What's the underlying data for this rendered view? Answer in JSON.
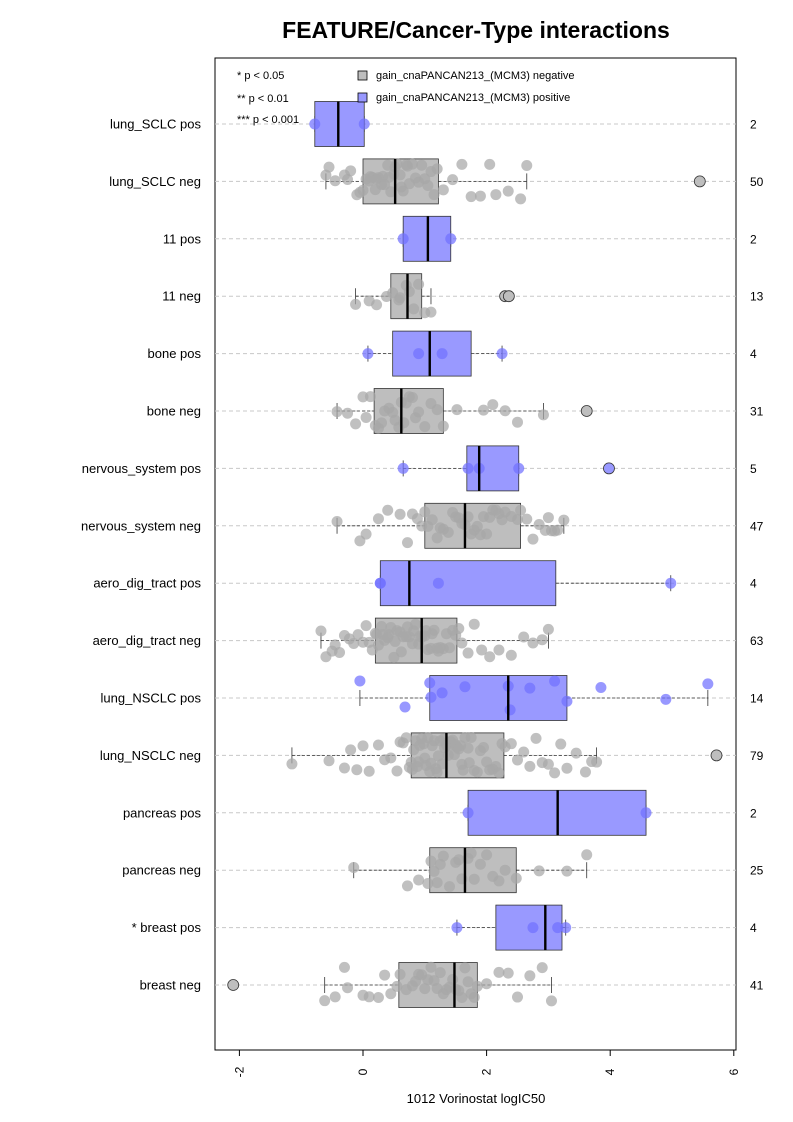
{
  "chart_data": {
    "type": "box",
    "orientation": "horizontal",
    "title": "FEATURE/Cancer-Type interactions",
    "xlabel": "1012 Vorinostat logIC50",
    "xlim": [
      -2.4,
      6
    ],
    "x_ticks": [
      -2,
      0,
      2,
      4,
      6
    ],
    "x_tick_labels": [
      "-2",
      "0",
      "2",
      "4",
      "6"
    ],
    "grid": "horizontal dashed",
    "legend": {
      "placement": "top-left",
      "significance": [
        "* p < 0.05",
        "** p < 0.01",
        "*** p < 0.001"
      ],
      "groups": [
        {
          "label": "gain_cnaPANCAN213_(MCM3) negative",
          "color": "#bebebe"
        },
        {
          "label": "gain_cnaPANCAN213_(MCM3) positive",
          "color": "#9999ff"
        }
      ]
    },
    "colors": {
      "negative_box": "#bebebe",
      "positive_box": "#9999ff",
      "negative_point": "#a8a8a8",
      "positive_point": "#7070ff"
    },
    "rows": [
      {
        "label": "lung_SCLC pos",
        "group": "positive",
        "n": "2",
        "q1": -0.78,
        "median": -0.4,
        "q3": 0.02,
        "wlo": -0.78,
        "whi": 0.02,
        "outliers": [],
        "points": [
          -0.78,
          0.02
        ]
      },
      {
        "label": "lung_SCLC neg",
        "group": "negative",
        "n": "50",
        "q1": 0.0,
        "median": 0.52,
        "q3": 1.22,
        "wlo": -0.6,
        "whi": 2.65,
        "outliers": [
          5.45
        ],
        "points": [
          -0.6,
          -0.55,
          -0.45,
          -0.3,
          -0.25,
          -0.2,
          -0.1,
          -0.05,
          0.0,
          0.05,
          0.1,
          0.12,
          0.15,
          0.2,
          0.22,
          0.25,
          0.3,
          0.32,
          0.35,
          0.4,
          0.42,
          0.45,
          0.5,
          0.52,
          0.55,
          0.6,
          0.62,
          0.65,
          0.7,
          0.72,
          0.75,
          0.8,
          0.85,
          0.9,
          0.95,
          1.0,
          1.05,
          1.1,
          1.15,
          1.2,
          1.3,
          1.45,
          1.6,
          1.75,
          1.9,
          2.05,
          2.15,
          2.35,
          2.55,
          2.65
        ]
      },
      {
        "label": "11 pos",
        "group": "positive",
        "n": "2",
        "q1": 0.65,
        "median": 1.05,
        "q3": 1.42,
        "wlo": 0.65,
        "whi": 1.42,
        "outliers": [],
        "points": [
          0.65,
          1.42
        ]
      },
      {
        "label": "11 neg",
        "group": "negative",
        "n": "13",
        "q1": 0.45,
        "median": 0.72,
        "q3": 0.95,
        "wlo": -0.12,
        "whi": 1.1,
        "outliers": [
          2.3,
          2.36
        ],
        "points": [
          -0.12,
          0.1,
          0.22,
          0.38,
          0.48,
          0.58,
          0.7,
          0.75,
          0.82,
          0.9,
          1.0,
          1.1,
          0.6
        ]
      },
      {
        "label": "bone pos",
        "group": "positive",
        "n": "4",
        "q1": 0.48,
        "median": 1.08,
        "q3": 1.75,
        "wlo": 0.08,
        "whi": 2.25,
        "outliers": [],
        "points": [
          0.08,
          0.9,
          1.28,
          2.25
        ]
      },
      {
        "label": "bone neg",
        "group": "negative",
        "n": "31",
        "q1": 0.18,
        "median": 0.62,
        "q3": 1.3,
        "wlo": -0.42,
        "whi": 2.92,
        "outliers": [
          3.62
        ],
        "points": [
          -0.42,
          -0.25,
          -0.12,
          0.0,
          0.05,
          0.12,
          0.2,
          0.25,
          0.3,
          0.35,
          0.42,
          0.48,
          0.52,
          0.58,
          0.62,
          0.66,
          0.7,
          0.75,
          0.8,
          0.85,
          0.9,
          1.0,
          1.1,
          1.2,
          1.3,
          1.52,
          1.95,
          2.1,
          2.3,
          2.5,
          2.92
        ]
      },
      {
        "label": "nervous_system pos",
        "group": "positive",
        "n": "5",
        "q1": 1.68,
        "median": 1.88,
        "q3": 2.52,
        "wlo": 0.65,
        "whi": 2.52,
        "outliers": [
          3.98
        ],
        "points": [
          0.65,
          1.7,
          1.88,
          2.52
        ]
      },
      {
        "label": "nervous_system neg",
        "group": "negative",
        "n": "47",
        "q1": 1.0,
        "median": 1.65,
        "q3": 2.55,
        "wlo": -0.42,
        "whi": 3.25,
        "outliers": [],
        "points": [
          -0.42,
          -0.05,
          0.05,
          0.25,
          0.4,
          0.6,
          0.72,
          0.8,
          0.88,
          0.95,
          1.0,
          1.05,
          1.12,
          1.2,
          1.25,
          1.3,
          1.38,
          1.45,
          1.5,
          1.55,
          1.6,
          1.65,
          1.7,
          1.75,
          1.8,
          1.85,
          1.9,
          1.95,
          2.0,
          2.05,
          2.1,
          2.15,
          2.2,
          2.3,
          2.4,
          2.5,
          2.55,
          2.65,
          2.75,
          2.85,
          2.95,
          3.0,
          3.05,
          3.1,
          3.15,
          3.25,
          2.25
        ]
      },
      {
        "label": "aero_dig_tract pos",
        "group": "positive",
        "n": "4",
        "q1": 0.28,
        "median": 0.75,
        "q3": 3.12,
        "wlo": 0.28,
        "whi": 4.98,
        "outliers": [],
        "points": [
          0.28,
          0.28,
          1.22,
          4.98
        ]
      },
      {
        "label": "aero_dig_tract neg",
        "group": "negative",
        "n": "63",
        "q1": 0.2,
        "median": 0.95,
        "q3": 1.52,
        "wlo": -0.68,
        "whi": 3.0,
        "outliers": [],
        "points": [
          -0.68,
          -0.6,
          -0.5,
          -0.45,
          -0.38,
          -0.3,
          -0.22,
          -0.15,
          -0.08,
          0.0,
          0.05,
          0.1,
          0.15,
          0.2,
          0.22,
          0.25,
          0.3,
          0.32,
          0.35,
          0.4,
          0.42,
          0.45,
          0.5,
          0.52,
          0.55,
          0.6,
          0.62,
          0.65,
          0.7,
          0.72,
          0.75,
          0.8,
          0.82,
          0.85,
          0.9,
          0.92,
          0.95,
          1.0,
          1.02,
          1.05,
          1.1,
          1.12,
          1.15,
          1.2,
          1.22,
          1.25,
          1.3,
          1.35,
          1.4,
          1.45,
          1.5,
          1.55,
          1.6,
          1.7,
          1.8,
          1.92,
          2.05,
          2.2,
          2.4,
          2.6,
          2.75,
          2.9,
          3.0
        ]
      },
      {
        "label": "lung_NSCLC pos",
        "group": "positive",
        "n": "14",
        "q1": 1.08,
        "median": 2.35,
        "q3": 3.3,
        "wlo": -0.05,
        "whi": 5.58,
        "outliers": [],
        "points": [
          -0.05,
          0.68,
          1.08,
          1.1,
          1.28,
          1.65,
          2.35,
          2.38,
          2.7,
          3.1,
          3.3,
          3.85,
          4.9,
          5.58
        ]
      },
      {
        "label": "lung_NSCLC neg",
        "group": "negative",
        "n": "79",
        "q1": 0.78,
        "median": 1.35,
        "q3": 2.28,
        "wlo": -1.15,
        "whi": 3.78,
        "outliers": [
          5.72
        ],
        "points": [
          -1.15,
          -0.55,
          -0.3,
          -0.2,
          -0.1,
          0.0,
          0.1,
          0.25,
          0.35,
          0.45,
          0.55,
          0.6,
          0.65,
          0.7,
          0.75,
          0.78,
          0.8,
          0.82,
          0.85,
          0.88,
          0.9,
          0.92,
          0.95,
          0.98,
          1.0,
          1.02,
          1.05,
          1.08,
          1.1,
          1.12,
          1.15,
          1.18,
          1.2,
          1.22,
          1.25,
          1.28,
          1.3,
          1.32,
          1.35,
          1.38,
          1.4,
          1.42,
          1.45,
          1.48,
          1.5,
          1.52,
          1.55,
          1.58,
          1.6,
          1.62,
          1.65,
          1.7,
          1.72,
          1.75,
          1.8,
          1.85,
          1.9,
          1.95,
          2.0,
          2.05,
          2.1,
          2.15,
          2.2,
          2.25,
          2.3,
          2.4,
          2.5,
          2.6,
          2.7,
          2.8,
          2.9,
          3.0,
          3.1,
          3.2,
          3.3,
          3.45,
          3.6,
          3.7,
          3.78
        ]
      },
      {
        "label": "pancreas pos",
        "group": "positive",
        "n": "2",
        "q1": 1.7,
        "median": 3.15,
        "q3": 4.58,
        "wlo": 1.7,
        "whi": 4.58,
        "outliers": [],
        "points": [
          1.7,
          4.58
        ]
      },
      {
        "label": "pancreas neg",
        "group": "negative",
        "n": "25",
        "q1": 1.08,
        "median": 1.65,
        "q3": 2.48,
        "wlo": -0.15,
        "whi": 3.62,
        "outliers": [],
        "points": [
          -0.15,
          0.72,
          0.9,
          1.05,
          1.1,
          1.15,
          1.2,
          1.25,
          1.3,
          1.4,
          1.5,
          1.55,
          1.6,
          1.7,
          1.75,
          1.8,
          1.9,
          2.0,
          2.1,
          2.2,
          2.3,
          2.48,
          2.85,
          3.3,
          3.62
        ]
      },
      {
        "label": "* breast pos",
        "group": "positive",
        "n": "4",
        "q1": 2.15,
        "median": 2.95,
        "q3": 3.22,
        "wlo": 1.52,
        "whi": 3.28,
        "outliers": [],
        "points": [
          1.52,
          2.75,
          3.15,
          3.28
        ]
      },
      {
        "label": "breast neg",
        "group": "negative",
        "n": "41",
        "q1": 0.58,
        "median": 1.48,
        "q3": 1.85,
        "wlo": -0.62,
        "whi": 3.05,
        "outliers": [
          -2.1
        ],
        "points": [
          -0.62,
          -0.45,
          -0.3,
          -0.25,
          0.0,
          0.1,
          0.25,
          0.35,
          0.45,
          0.55,
          0.6,
          0.7,
          0.8,
          0.85,
          0.9,
          0.95,
          1.0,
          1.05,
          1.1,
          1.15,
          1.2,
          1.25,
          1.3,
          1.35,
          1.4,
          1.45,
          1.5,
          1.55,
          1.6,
          1.65,
          1.7,
          1.75,
          1.8,
          1.85,
          2.0,
          2.2,
          2.35,
          2.5,
          2.7,
          2.9,
          3.05
        ]
      }
    ]
  }
}
